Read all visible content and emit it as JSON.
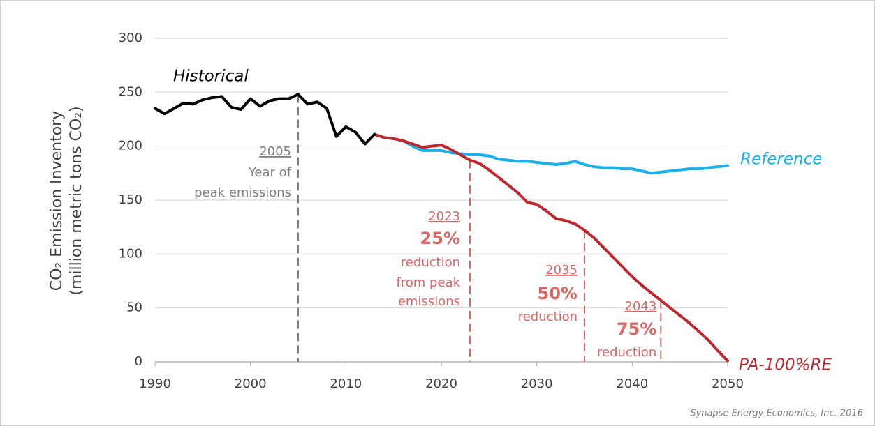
{
  "chart_data": {
    "type": "line",
    "ylabel": [
      "CO₂ Emission Inventory",
      "(million metric tons CO₂)"
    ],
    "xlim": [
      1990,
      2050
    ],
    "xticks": [
      1990,
      2000,
      2010,
      2020,
      2030,
      2040,
      2050
    ],
    "ylim": [
      0,
      300
    ],
    "yticks": [
      0,
      50,
      100,
      150,
      200,
      250,
      300
    ],
    "grid": true,
    "series": [
      {
        "name": "Historical",
        "color": "#000000",
        "x": [
          1990,
          1991,
          1992,
          1993,
          1994,
          1995,
          1996,
          1997,
          1998,
          1999,
          2000,
          2001,
          2002,
          2003,
          2004,
          2005,
          2006,
          2007,
          2008,
          2009,
          2010,
          2011,
          2012,
          2013
        ],
        "values": [
          235,
          230,
          235,
          240,
          239,
          243,
          245,
          246,
          236,
          234,
          244,
          237,
          242,
          244,
          244,
          248,
          239,
          241,
          235,
          209,
          218,
          213,
          202,
          211
        ]
      },
      {
        "name": "Reference",
        "color": "#1ab0ec",
        "x": [
          2013,
          2014,
          2015,
          2016,
          2017,
          2018,
          2019,
          2020,
          2021,
          2022,
          2023,
          2024,
          2025,
          2026,
          2027,
          2028,
          2029,
          2030,
          2031,
          2032,
          2033,
          2034,
          2035,
          2036,
          2037,
          2038,
          2039,
          2040,
          2041,
          2042,
          2043,
          2044,
          2045,
          2046,
          2047,
          2048,
          2049,
          2050
        ],
        "values": [
          211,
          208,
          207,
          205,
          200,
          196,
          196,
          196,
          194,
          193,
          192,
          192,
          191,
          188,
          187,
          186,
          186,
          185,
          184,
          183,
          184,
          186,
          183,
          181,
          180,
          180,
          179,
          179,
          177,
          175,
          176,
          177,
          178,
          179,
          179,
          180,
          181,
          182
        ]
      },
      {
        "name": "PA-100%RE",
        "color": "#c0272d",
        "x": [
          2013,
          2014,
          2015,
          2016,
          2017,
          2018,
          2019,
          2020,
          2021,
          2022,
          2023,
          2024,
          2025,
          2026,
          2027,
          2028,
          2029,
          2030,
          2031,
          2032,
          2033,
          2034,
          2035,
          2036,
          2037,
          2038,
          2039,
          2040,
          2041,
          2042,
          2043,
          2044,
          2045,
          2046,
          2047,
          2048,
          2049,
          2050
        ],
        "values": [
          211,
          208,
          207,
          205,
          202,
          199,
          200,
          201,
          197,
          192,
          187,
          184,
          178,
          171,
          164,
          157,
          148,
          146,
          140,
          133,
          131,
          128,
          122,
          115,
          106,
          97,
          88,
          79,
          71,
          64,
          57,
          50,
          43,
          36,
          28,
          20,
          10,
          1
        ]
      }
    ],
    "annotations": [
      {
        "x": 2005,
        "color": "#7f7f7f",
        "lines": [
          "2005",
          "Year of",
          "peak emissions"
        ]
      },
      {
        "x": 2023,
        "color": "#e06666",
        "lines": [
          "2023",
          "25%",
          "reduction",
          "from peak",
          "emissions"
        ]
      },
      {
        "x": 2035,
        "color": "#e06666",
        "lines": [
          "2035",
          "50%",
          "reduction"
        ]
      },
      {
        "x": 2043,
        "color": "#e06666",
        "lines": [
          "2043",
          "75%",
          "reduction"
        ]
      }
    ],
    "source": "Synapse Energy Economics, Inc. 2016"
  }
}
